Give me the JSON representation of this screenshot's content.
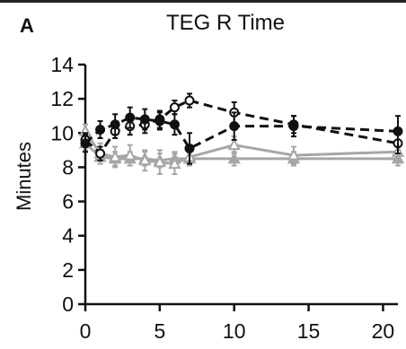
{
  "panel_label": "A",
  "chart_data": {
    "type": "line",
    "title": "TEG R Time",
    "xlabel": "",
    "ylabel": "Minutes",
    "xlim": [
      0,
      21
    ],
    "ylim": [
      0,
      14
    ],
    "xticks": [
      0,
      5,
      10,
      15,
      20
    ],
    "yticks": [
      0,
      2,
      4,
      6,
      8,
      10,
      12,
      14
    ],
    "grid": false,
    "legend": "none",
    "series": [
      {
        "color": "#111111",
        "dash": true,
        "marker": "circle-open",
        "points": [
          [
            0,
            9.6
          ],
          [
            1,
            8.8
          ],
          [
            2,
            10.1
          ],
          [
            3,
            10.4
          ],
          [
            4,
            10.5
          ],
          [
            5,
            10.8
          ],
          [
            6,
            11.5
          ],
          [
            7,
            11.9
          ],
          [
            10,
            11.2
          ],
          [
            14,
            10.5
          ],
          [
            21,
            9.4
          ]
        ],
        "err": [
          0.4,
          0.4,
          0.4,
          0.5,
          0.5,
          0.5,
          0.4,
          0.4,
          0.6,
          0.5,
          0.6
        ]
      },
      {
        "color": "#111111",
        "dash": true,
        "marker": "circle-filled",
        "points": [
          [
            0,
            9.4
          ],
          [
            1,
            10.2
          ],
          [
            2,
            10.5
          ],
          [
            3,
            10.9
          ],
          [
            4,
            10.8
          ],
          [
            5,
            10.7
          ],
          [
            6,
            10.5
          ],
          [
            7,
            9.1
          ],
          [
            10,
            10.4
          ],
          [
            14,
            10.4
          ],
          [
            21,
            10.1
          ]
        ],
        "err": [
          0.5,
          0.5,
          0.6,
          0.6,
          0.6,
          0.5,
          0.6,
          0.9,
          0.8,
          0.6,
          0.9
        ]
      },
      {
        "color": "#a6a6a6",
        "dash": false,
        "marker": "triangle-open",
        "points": [
          [
            0,
            10.1
          ],
          [
            1,
            8.8
          ],
          [
            2,
            8.6
          ],
          [
            3,
            8.7
          ],
          [
            4,
            8.4
          ],
          [
            5,
            8.3
          ],
          [
            6,
            8.2
          ],
          [
            7,
            8.6
          ],
          [
            10,
            9.3
          ],
          [
            14,
            8.7
          ],
          [
            21,
            8.9
          ]
        ],
        "err": [
          0.4,
          0.6,
          0.6,
          0.6,
          0.6,
          0.7,
          0.6,
          0.5,
          0.5,
          0.5,
          0.5
        ]
      },
      {
        "color": "#a6a6a6",
        "dash": false,
        "marker": "triangle-filled",
        "points": [
          [
            0,
            9.4
          ],
          [
            1,
            8.6
          ],
          [
            2,
            8.5
          ],
          [
            3,
            8.5
          ],
          [
            4,
            8.5
          ],
          [
            5,
            8.4
          ],
          [
            6,
            8.5
          ],
          [
            7,
            8.5
          ],
          [
            10,
            8.5
          ],
          [
            14,
            8.5
          ],
          [
            21,
            8.5
          ]
        ],
        "err": [
          0.4,
          0.4,
          0.4,
          0.4,
          0.4,
          0.4,
          0.4,
          0.4,
          0.4,
          0.4,
          0.4
        ]
      }
    ]
  }
}
